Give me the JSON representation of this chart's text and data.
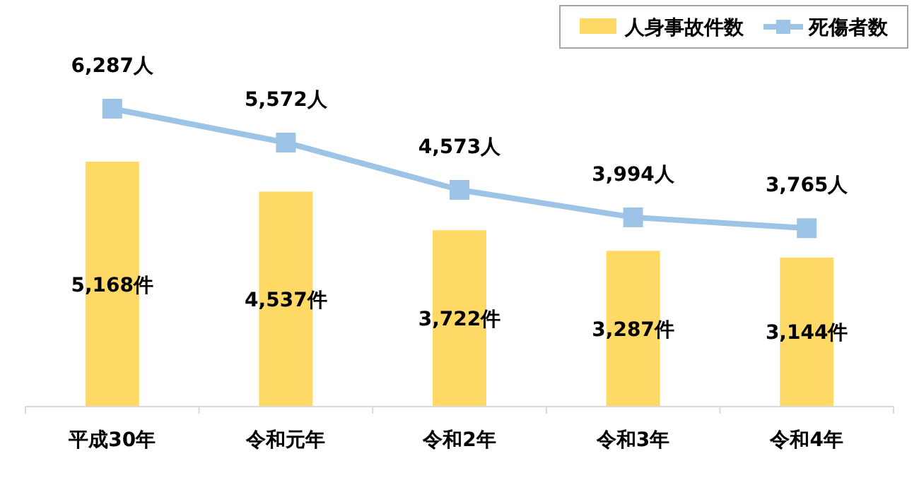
{
  "chart_data": {
    "type": "bar",
    "categories": [
      "平成30年",
      "令和元年",
      "令和2年",
      "令和3年",
      "令和4年"
    ],
    "series": [
      {
        "name": "人身事故件数",
        "color": "#ffd966",
        "values": [
          5168,
          4537,
          3722,
          3287,
          3144
        ],
        "value_labels": [
          "5,168件",
          "4,537件",
          "3,722件",
          "3,287件",
          "3,144件"
        ]
      },
      {
        "name": "死傷者数",
        "type": "line",
        "color": "#9dc3e6",
        "marker": "square",
        "values": [
          6287,
          5572,
          4573,
          3994,
          3765
        ],
        "value_labels": [
          "6,287人",
          "5,572人",
          "4,573人",
          "3,994人",
          "3,765人"
        ]
      }
    ],
    "legend": "top right"
  }
}
